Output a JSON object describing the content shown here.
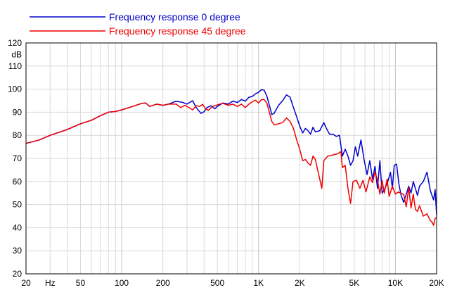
{
  "chart_data": {
    "type": "line",
    "title": "",
    "xlabel": "",
    "ylabel": "",
    "x_unit": "Hz",
    "y_unit": "dB",
    "x_scale": "log",
    "xlim": [
      20,
      20000
    ],
    "ylim": [
      20,
      120
    ],
    "grid": true,
    "legend_position": "top-left",
    "x_ticks": [
      {
        "value": 20,
        "label": "20"
      },
      {
        "value": 50,
        "label": "50"
      },
      {
        "value": 100,
        "label": "100"
      },
      {
        "value": 200,
        "label": "200"
      },
      {
        "value": 500,
        "label": "500"
      },
      {
        "value": 1000,
        "label": "1K"
      },
      {
        "value": 2000,
        "label": "2K"
      },
      {
        "value": 5000,
        "label": "5K"
      },
      {
        "value": 10000,
        "label": "10K"
      },
      {
        "value": 20000,
        "label": "20K"
      }
    ],
    "y_ticks": [
      20,
      30,
      40,
      50,
      60,
      70,
      80,
      90,
      100,
      110,
      120
    ],
    "series": [
      {
        "name": "Frequency response 0 degree",
        "color": "#0000cc",
        "points": [
          [
            20,
            76.5
          ],
          [
            25,
            78
          ],
          [
            30,
            80
          ],
          [
            40,
            82.5
          ],
          [
            50,
            85
          ],
          [
            60,
            86.5
          ],
          [
            70,
            88.5
          ],
          [
            80,
            90
          ],
          [
            90,
            90.3
          ],
          [
            100,
            91
          ],
          [
            120,
            92.5
          ],
          [
            140,
            93.8
          ],
          [
            150,
            94
          ],
          [
            160,
            92.5
          ],
          [
            180,
            93.5
          ],
          [
            200,
            93
          ],
          [
            220,
            93.5
          ],
          [
            250,
            94.8
          ],
          [
            280,
            94.2
          ],
          [
            300,
            93.5
          ],
          [
            330,
            95
          ],
          [
            350,
            92
          ],
          [
            380,
            89.5
          ],
          [
            400,
            90.2
          ],
          [
            420,
            92
          ],
          [
            450,
            92.8
          ],
          [
            480,
            91.5
          ],
          [
            500,
            92.5
          ],
          [
            550,
            94
          ],
          [
            600,
            93.5
          ],
          [
            650,
            94.8
          ],
          [
            700,
            94.2
          ],
          [
            750,
            95.5
          ],
          [
            800,
            94.8
          ],
          [
            850,
            96.5
          ],
          [
            900,
            96.8
          ],
          [
            950,
            98
          ],
          [
            1000,
            98.6
          ],
          [
            1050,
            99.8
          ],
          [
            1100,
            99.5
          ],
          [
            1150,
            97
          ],
          [
            1200,
            93
          ],
          [
            1250,
            89
          ],
          [
            1300,
            89.5
          ],
          [
            1400,
            93
          ],
          [
            1500,
            95
          ],
          [
            1600,
            97.5
          ],
          [
            1700,
            96.5
          ],
          [
            1800,
            92
          ],
          [
            1900,
            88
          ],
          [
            2000,
            84
          ],
          [
            2100,
            81
          ],
          [
            2200,
            83
          ],
          [
            2300,
            82
          ],
          [
            2400,
            80.5
          ],
          [
            2500,
            83.5
          ],
          [
            2600,
            81.5
          ],
          [
            2800,
            82
          ],
          [
            3000,
            85.5
          ],
          [
            3100,
            83.5
          ],
          [
            3300,
            80.5
          ],
          [
            3500,
            80.5
          ],
          [
            3700,
            79.5
          ],
          [
            3900,
            80
          ],
          [
            4100,
            71
          ],
          [
            4300,
            74
          ],
          [
            4500,
            71
          ],
          [
            4700,
            67
          ],
          [
            4900,
            69
          ],
          [
            5100,
            75
          ],
          [
            5300,
            71
          ],
          [
            5600,
            78
          ],
          [
            5900,
            69.5
          ],
          [
            6200,
            63
          ],
          [
            6500,
            69
          ],
          [
            6800,
            61
          ],
          [
            7100,
            66.5
          ],
          [
            7400,
            57
          ],
          [
            7700,
            69
          ],
          [
            8000,
            55
          ],
          [
            8400,
            57
          ],
          [
            8800,
            60
          ],
          [
            9200,
            64
          ],
          [
            9500,
            57
          ],
          [
            9800,
            67
          ],
          [
            10200,
            67.5
          ],
          [
            10600,
            59
          ],
          [
            11000,
            54
          ],
          [
            11500,
            51
          ],
          [
            12000,
            54.5
          ],
          [
            12500,
            58
          ],
          [
            13000,
            55
          ],
          [
            13500,
            60
          ],
          [
            14000,
            57
          ],
          [
            14500,
            54
          ],
          [
            15000,
            58
          ],
          [
            16000,
            60
          ],
          [
            17000,
            64
          ],
          [
            18000,
            56
          ],
          [
            19000,
            52
          ],
          [
            19500,
            56.5
          ],
          [
            20000,
            45.5
          ]
        ]
      },
      {
        "name": "Frequency response 45 degree",
        "color": "#ee0000",
        "points": [
          [
            20,
            76.5
          ],
          [
            25,
            78
          ],
          [
            30,
            80
          ],
          [
            40,
            82.5
          ],
          [
            50,
            85
          ],
          [
            60,
            86.5
          ],
          [
            70,
            88.5
          ],
          [
            80,
            90
          ],
          [
            90,
            90.3
          ],
          [
            100,
            91
          ],
          [
            120,
            92.5
          ],
          [
            140,
            93.8
          ],
          [
            150,
            94
          ],
          [
            160,
            92.5
          ],
          [
            180,
            93.5
          ],
          [
            200,
            93
          ],
          [
            220,
            93.5
          ],
          [
            250,
            93.5
          ],
          [
            270,
            92
          ],
          [
            290,
            93
          ],
          [
            310,
            92
          ],
          [
            330,
            91
          ],
          [
            350,
            92.8
          ],
          [
            370,
            92.5
          ],
          [
            390,
            93.4
          ],
          [
            410,
            91.5
          ],
          [
            430,
            90.8
          ],
          [
            460,
            92.5
          ],
          [
            490,
            93
          ],
          [
            520,
            93.5
          ],
          [
            550,
            93.8
          ],
          [
            600,
            93
          ],
          [
            650,
            93.5
          ],
          [
            700,
            92.5
          ],
          [
            750,
            93.5
          ],
          [
            800,
            92
          ],
          [
            850,
            93.5
          ],
          [
            900,
            94.5
          ],
          [
            950,
            95.2
          ],
          [
            1000,
            94
          ],
          [
            1050,
            95.5
          ],
          [
            1100,
            95.5
          ],
          [
            1150,
            94
          ],
          [
            1200,
            90
          ],
          [
            1250,
            86
          ],
          [
            1300,
            84.5
          ],
          [
            1400,
            85
          ],
          [
            1500,
            85.5
          ],
          [
            1600,
            87.5
          ],
          [
            1700,
            86
          ],
          [
            1800,
            83
          ],
          [
            1900,
            78
          ],
          [
            2000,
            74
          ],
          [
            2100,
            69
          ],
          [
            2200,
            69.5
          ],
          [
            2300,
            68
          ],
          [
            2400,
            67
          ],
          [
            2500,
            71
          ],
          [
            2600,
            69.5
          ],
          [
            2800,
            61
          ],
          [
            2900,
            57
          ],
          [
            3000,
            69
          ],
          [
            3200,
            71
          ],
          [
            3500,
            71.5
          ],
          [
            3800,
            72
          ],
          [
            4000,
            73
          ],
          [
            4100,
            66
          ],
          [
            4300,
            67
          ],
          [
            4500,
            57
          ],
          [
            4700,
            50.5
          ],
          [
            4900,
            60
          ],
          [
            5200,
            60.5
          ],
          [
            5500,
            57
          ],
          [
            5800,
            60.5
          ],
          [
            6100,
            55.5
          ],
          [
            6500,
            62
          ],
          [
            6800,
            59.5
          ],
          [
            7100,
            64
          ],
          [
            7400,
            60.5
          ],
          [
            7700,
            54.5
          ],
          [
            8000,
            60.5
          ],
          [
            8300,
            55
          ],
          [
            8700,
            61
          ],
          [
            9000,
            53.5
          ],
          [
            9500,
            58
          ],
          [
            10000,
            54.5
          ],
          [
            10500,
            55.5
          ],
          [
            11000,
            54.8
          ],
          [
            11500,
            54.5
          ],
          [
            12000,
            49
          ],
          [
            12500,
            57.5
          ],
          [
            13000,
            48.5
          ],
          [
            13500,
            54.5
          ],
          [
            14000,
            48
          ],
          [
            14500,
            47
          ],
          [
            15000,
            49.5
          ],
          [
            16000,
            45
          ],
          [
            17000,
            46
          ],
          [
            18000,
            43
          ],
          [
            18500,
            42.5
          ],
          [
            19000,
            41
          ],
          [
            19500,
            44
          ],
          [
            20000,
            44.5
          ]
        ]
      }
    ]
  }
}
